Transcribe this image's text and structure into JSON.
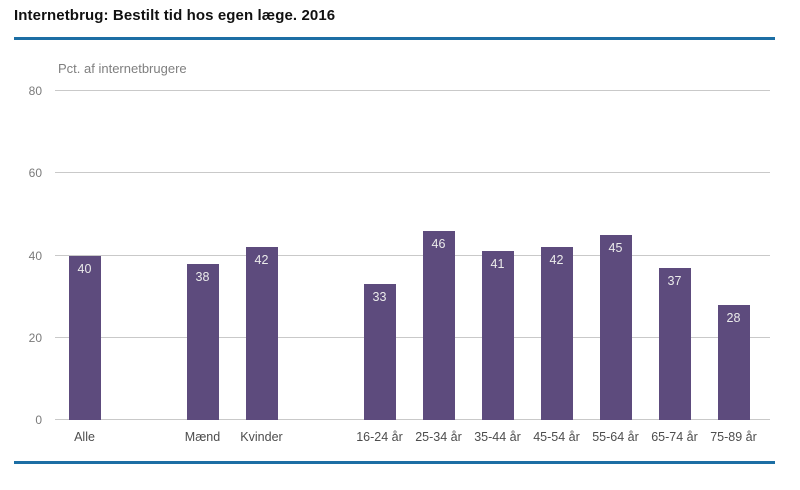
{
  "chart_data": {
    "type": "bar",
    "title": "Internetbrug: Bestilt tid hos egen læge. 2016",
    "axis_title": "Pct. af internetbrugere",
    "xlabel": "",
    "ylabel": "Pct. af internetbrugere",
    "ylim": [
      0,
      80
    ],
    "yticks": [
      0,
      20,
      40,
      60,
      80
    ],
    "grid": true,
    "legend": "none",
    "categories": [
      "Alle",
      "Mænd",
      "Kvinder",
      "16-24 år",
      "25-34 år",
      "35-44 år",
      "45-54 år",
      "55-64 år",
      "65-74 år",
      "75-89 år"
    ],
    "values": [
      40,
      38,
      42,
      33,
      46,
      41,
      42,
      45,
      37,
      28
    ],
    "layout": {
      "total_slots": 12,
      "slot_of_category": [
        0,
        2,
        3,
        5,
        6,
        7,
        8,
        9,
        10,
        11
      ]
    },
    "colors": {
      "bar": "#5d4b7d",
      "bar_value_label": "#ebebeb",
      "rule": "#1c6ea4",
      "gridline": "#c9c9c9",
      "y_tick_text": "#7a7a7a",
      "x_tick_text": "#4d4d4d",
      "axis_title_text": "#7f7f7f",
      "title_text": "#111111"
    }
  }
}
